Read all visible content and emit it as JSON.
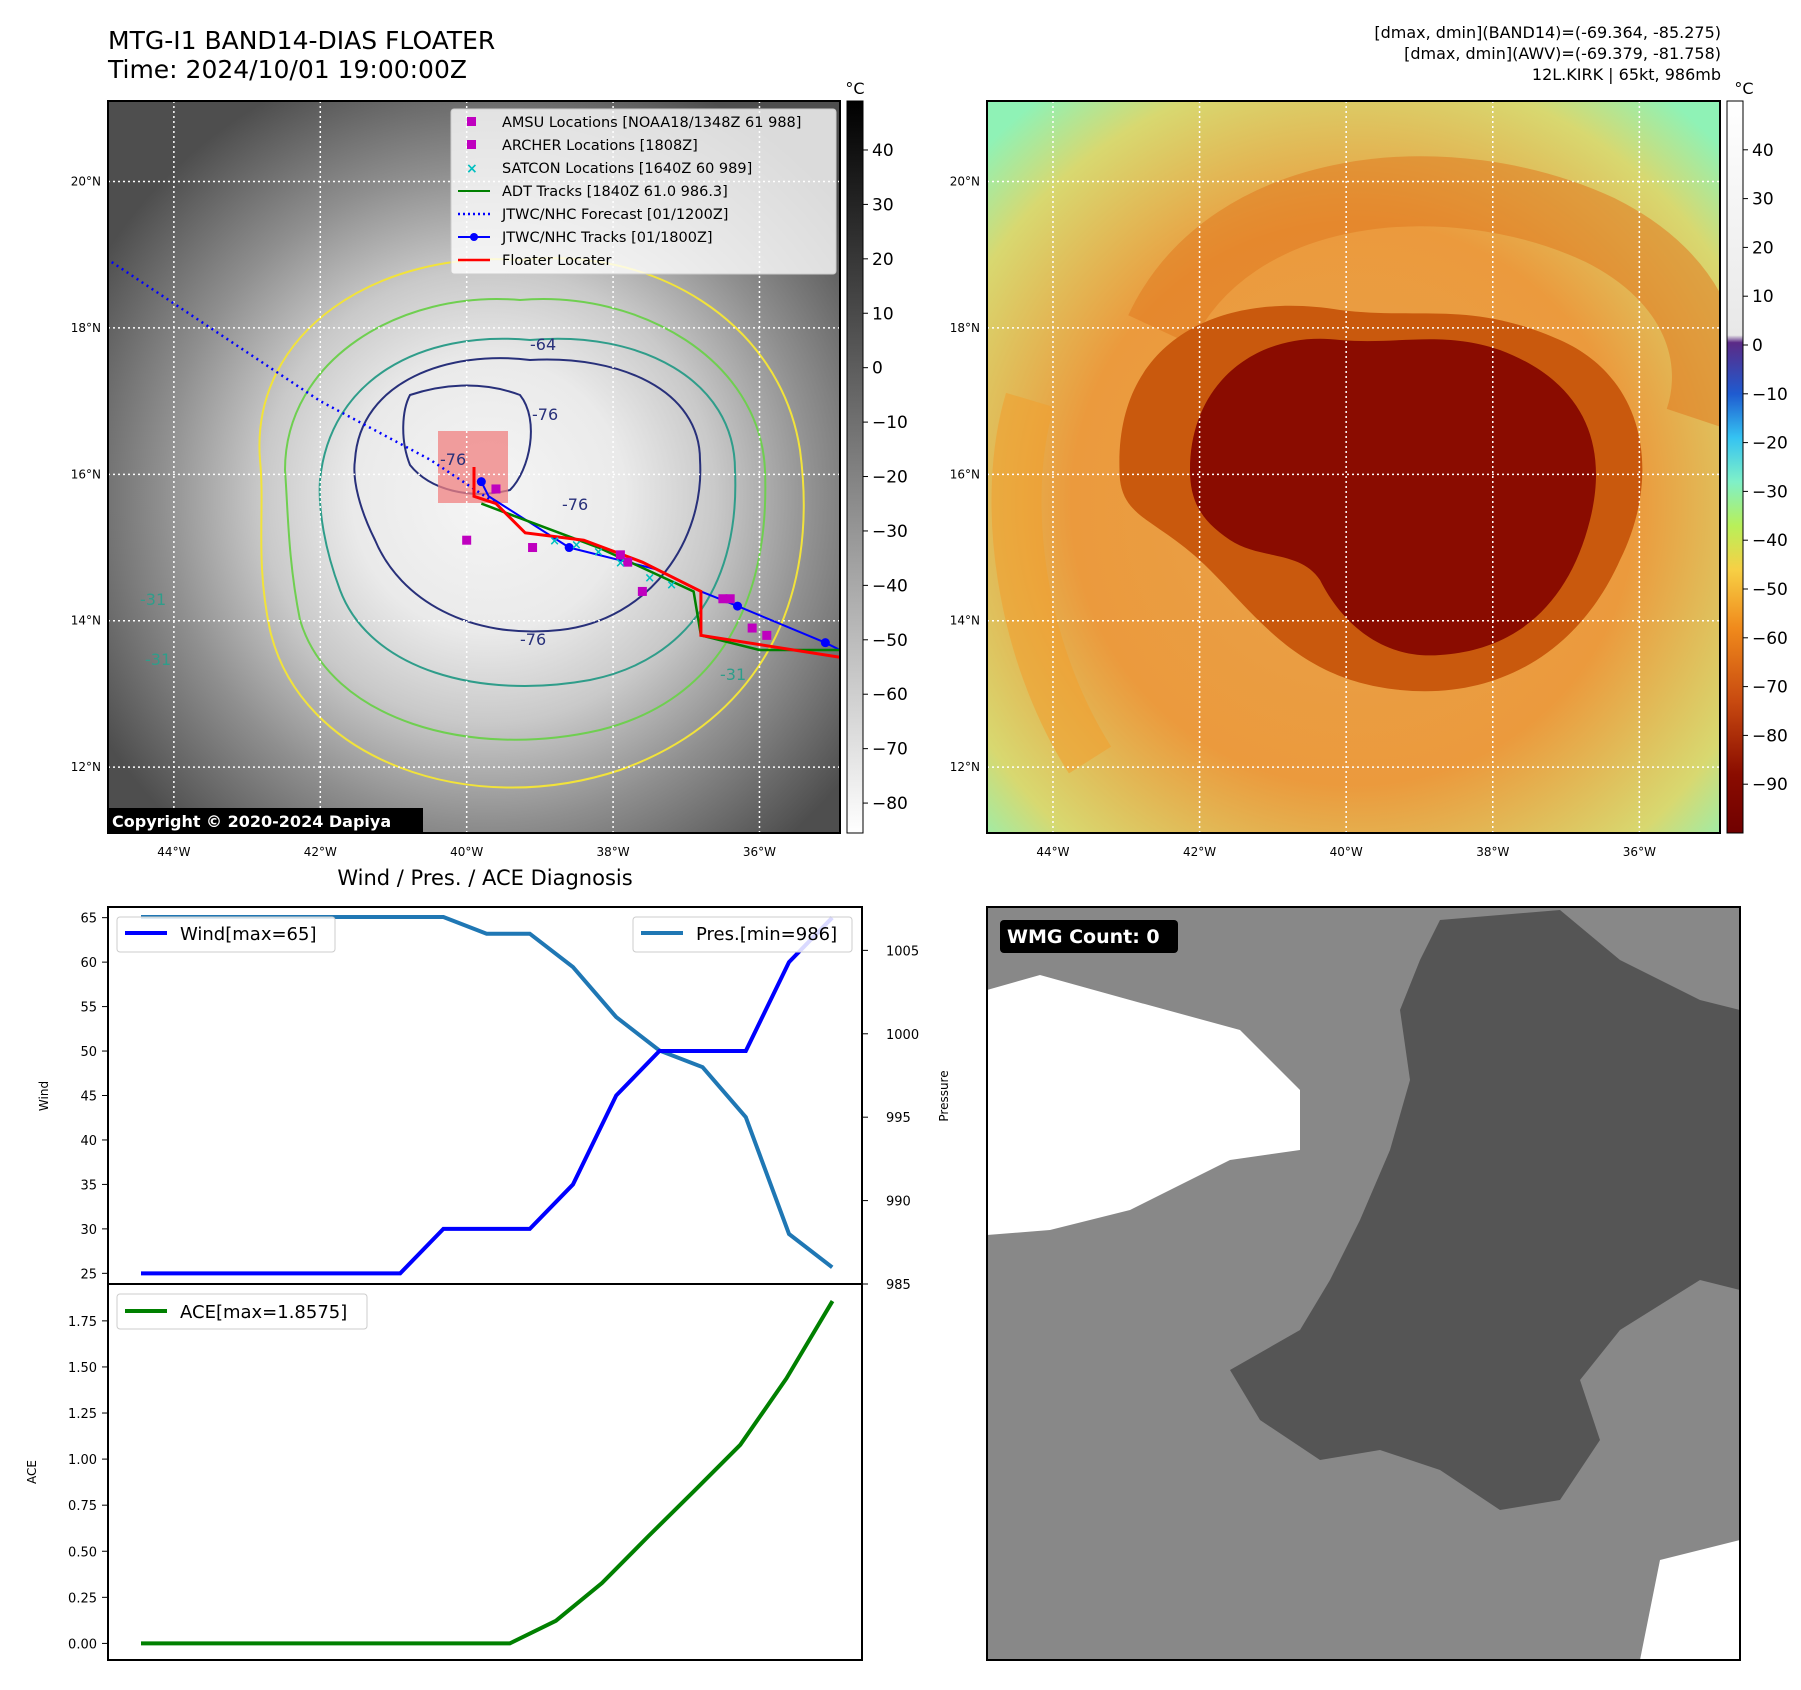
{
  "header": {
    "title_line1": "MTG-I1 BAND14-DIAS FLOATER",
    "title_line2": "Time: 2024/10/01 19:00:00Z",
    "info_line1": "[dmax, dmin](BAND14)=(-69.364, -85.275)",
    "info_line2": "[dmax, dmin](AWV)=(-69.379, -81.758)",
    "info_line3": "12L.KIRK | 65kt, 986mb"
  },
  "map_axes": {
    "lon_ticks": [
      "44°W",
      "42°W",
      "40°W",
      "38°W",
      "36°W"
    ],
    "lat_ticks": [
      "20°N",
      "18°N",
      "16°N",
      "14°N",
      "12°N"
    ],
    "lon_range": [
      -44.9,
      -34.9
    ],
    "lat_range": [
      11.1,
      21.1
    ]
  },
  "colorbar_left": {
    "unit": "°C",
    "ticks": [
      "40",
      "30",
      "20",
      "10",
      "0",
      "−10",
      "−20",
      "−30",
      "−40",
      "−50",
      "−60",
      "−70",
      "−80"
    ]
  },
  "colorbar_right": {
    "unit": "°C",
    "ticks": [
      "40",
      "30",
      "20",
      "10",
      "0",
      "−10",
      "−20",
      "−30",
      "−40",
      "−50",
      "−60",
      "−70",
      "−80",
      "−90"
    ]
  },
  "legend": {
    "amsu": "AMSU Locations [NOAA18/1348Z 61 988]",
    "archer": "ARCHER Locations [1808Z]",
    "satcon": "SATCON Locations [1640Z 60 989]",
    "adt": "ADT Tracks [1840Z 61.0 986.3]",
    "forecast": "JTWC/NHC Forecast [01/1200Z]",
    "tracks": "JTWC/NHC Tracks [01/1800Z]",
    "floater": "Floater Locater"
  },
  "contour_labels": [
    "-64",
    "-76",
    "-76",
    "-76",
    "-76",
    "-31",
    "-31",
    "-31"
  ],
  "copyright": "Copyright © 2020-2024 Dapiya",
  "diagnosis_title": "Wind / Pres. / ACE Diagnosis",
  "wmg_label": "WMG Count: 0",
  "colors": {
    "wind": "#0000ff",
    "pressure": "#1f77b4",
    "ace": "#008000",
    "floater": "#ff0000",
    "adt": "#008000",
    "tracks": "#0000ff",
    "archer": "#bf00bf",
    "satcon": "#00bfbf"
  },
  "chart_data": [
    {
      "type": "line",
      "title": "Wind / Pres. / ACE Diagnosis",
      "ylabel": "Wind",
      "y2label": "Pressure",
      "ylim": [
        23.8,
        66.2
      ],
      "y2lim": [
        985,
        1007.6
      ],
      "yticks": [
        "25",
        "30",
        "35",
        "40",
        "45",
        "50",
        "55",
        "60",
        "65"
      ],
      "y2ticks": [
        "985",
        "990",
        "995",
        "1000",
        "1005"
      ],
      "series": [
        {
          "name": "Wind[max=65]",
          "axis": "left",
          "values": [
            25,
            25,
            25,
            25,
            25,
            25,
            25,
            30,
            30,
            30,
            35,
            45,
            50,
            50,
            50,
            60,
            65
          ]
        },
        {
          "name": "Pres.[min=986]",
          "axis": "right",
          "values": [
            1007,
            1007,
            1007,
            1007,
            1007,
            1007,
            1007,
            1007,
            1006,
            1006,
            1004,
            1001,
            999,
            998,
            995,
            988,
            986
          ]
        }
      ]
    },
    {
      "type": "line",
      "ylabel": "ACE",
      "ylim": [
        -0.09,
        1.95
      ],
      "yticks": [
        "0.00",
        "0.25",
        "0.50",
        "0.75",
        "1.00",
        "1.25",
        "1.50",
        "1.75"
      ],
      "series": [
        {
          "name": "ACE[max=1.8575]",
          "values": [
            0,
            0,
            0,
            0,
            0,
            0,
            0,
            0,
            0,
            0.1225,
            0.3275,
            0.58,
            0.8275,
            1.0775,
            1.4375,
            1.8575
          ]
        }
      ]
    }
  ]
}
